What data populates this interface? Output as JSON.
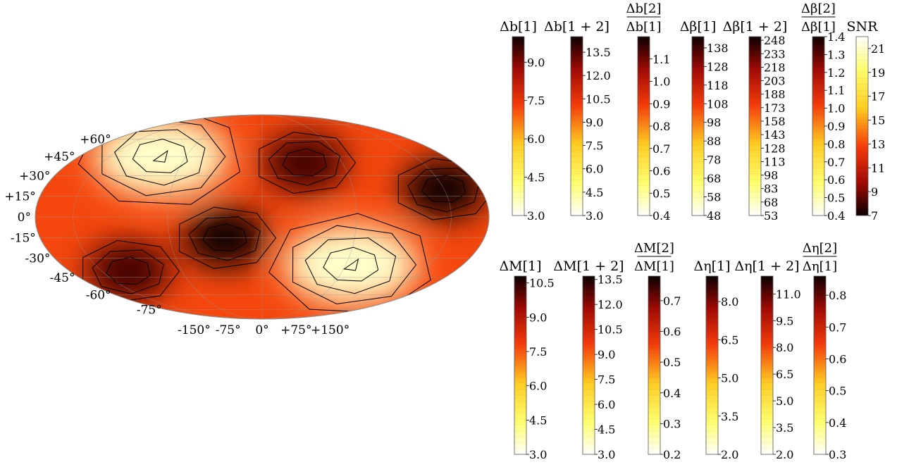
{
  "chart_data": [
    {
      "type": "heatmap",
      "projection": "mollweide",
      "colormap": "hot_r",
      "contours": true,
      "grid": true,
      "lat_tick_labels": [
        "+60°",
        "+45°",
        "+30°",
        "+15°",
        "0°",
        "-15°",
        "-30°",
        "-45°",
        "-60°",
        "-75°"
      ],
      "lon_tick_labels": [
        "-150°",
        "-75°",
        "0°",
        "+75°",
        "+150°"
      ],
      "extrema": [
        {
          "kind": "max",
          "lon": -100,
          "lat": 45,
          "value": 21
        },
        {
          "kind": "max",
          "lon": 80,
          "lat": -35,
          "value": 21
        },
        {
          "kind": "min",
          "lon": -30,
          "lat": -15,
          "value": 7
        },
        {
          "kind": "min",
          "lon": 40,
          "lat": 40,
          "value": 8
        },
        {
          "kind": "min",
          "lon": 150,
          "lat": 20,
          "value": 7
        },
        {
          "kind": "min",
          "lon": -125,
          "lat": -40,
          "value": 8
        }
      ]
    },
    {
      "type": "colorbar",
      "title": "Δb[1]",
      "range": [
        3.0,
        10.0
      ],
      "ticks": [
        "9.0",
        "7.5",
        "6.0",
        "4.5",
        "3.0"
      ]
    },
    {
      "type": "colorbar",
      "title": "Δb[1 + 2]",
      "range": [
        3.0,
        14.5
      ],
      "ticks": [
        "13.5",
        "12.0",
        "10.5",
        "9.0",
        "7.5",
        "6.0",
        "4.5",
        "3.0"
      ]
    },
    {
      "type": "colorbar",
      "title_num": "Δb[2]",
      "title_den": "Δb[1]",
      "range": [
        0.4,
        1.2
      ],
      "ticks": [
        "1.1",
        "1.0",
        "0.9",
        "0.8",
        "0.7",
        "0.6",
        "0.5",
        "0.4"
      ]
    },
    {
      "type": "colorbar",
      "title": "Δβ[1]",
      "range": [
        48,
        144
      ],
      "ticks": [
        "138",
        "128",
        "118",
        "108",
        "98",
        "88",
        "78",
        "68",
        "58",
        "48"
      ]
    },
    {
      "type": "colorbar",
      "title": "Δβ[1 + 2]",
      "range": [
        53,
        252
      ],
      "ticks": [
        "248",
        "233",
        "218",
        "203",
        "188",
        "173",
        "158",
        "143",
        "128",
        "113",
        "98",
        "83",
        "68",
        "53"
      ]
    },
    {
      "type": "colorbar",
      "title_num": "Δβ[2]",
      "title_den": "Δβ[1]",
      "range": [
        0.4,
        1.4
      ],
      "ticks": [
        "1.4",
        "1.3",
        "1.2",
        "1.1",
        "1.0",
        "0.9",
        "0.8",
        "0.7",
        "0.6",
        "0.5",
        "0.4"
      ]
    },
    {
      "type": "colorbar",
      "title": "SNR",
      "reversed": true,
      "range": [
        7,
        22
      ],
      "ticks": [
        "21",
        "19",
        "17",
        "15",
        "13",
        "11",
        "9",
        "7"
      ]
    },
    {
      "type": "colorbar",
      "title": "ΔM[1]",
      "range": [
        3.0,
        10.8
      ],
      "ticks": [
        "10.5",
        "9.0",
        "7.5",
        "6.0",
        "4.5",
        "3.0"
      ]
    },
    {
      "type": "colorbar",
      "title": "ΔM[1 + 2]",
      "range": [
        3.0,
        13.7
      ],
      "ticks": [
        "13.5",
        "12.0",
        "10.5",
        "9.0",
        "7.5",
        "6.0",
        "4.5",
        "3.0"
      ]
    },
    {
      "type": "colorbar",
      "title_num": "ΔM[2]",
      "title_den": "ΔM[1]",
      "range": [
        0.2,
        0.78
      ],
      "ticks": [
        "0.7",
        "0.6",
        "0.5",
        "0.4",
        "0.3",
        "0.2"
      ]
    },
    {
      "type": "colorbar",
      "title": "Δη[1]",
      "range": [
        2.0,
        9.0
      ],
      "ticks": [
        "8.0",
        "6.5",
        "5.0",
        "3.5",
        "2.0"
      ]
    },
    {
      "type": "colorbar",
      "title": "Δη[1 + 2]",
      "range": [
        2.0,
        12.0
      ],
      "ticks": [
        "11.0",
        "9.5",
        "8.0",
        "6.5",
        "5.0",
        "3.5",
        "2.0"
      ]
    },
    {
      "type": "colorbar",
      "title_num": "Δη[2]",
      "title_den": "Δη[1]",
      "range": [
        0.3,
        0.86
      ],
      "ticks": [
        "0.8",
        "0.7",
        "0.6",
        "0.5",
        "0.4",
        "0.3"
      ]
    }
  ]
}
